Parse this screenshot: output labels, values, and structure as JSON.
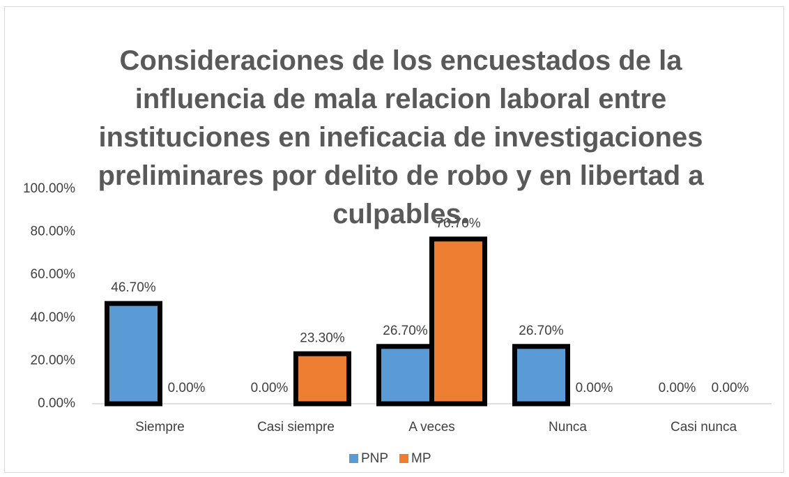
{
  "chart_data": {
    "type": "bar",
    "title": "Consideraciones de los encuestados de la influencia de mala relacion laboral entre instituciones en ineficacia de investigaciones preliminares por delito de robo y en libertad a culpables.",
    "categories": [
      "Siempre",
      "Casi siempre",
      "A veces",
      "Nunca",
      "Casi nunca"
    ],
    "series": [
      {
        "name": "PNP",
        "color": "#5b9bd5",
        "values": [
          46.7,
          0,
          26.7,
          26.7,
          0
        ],
        "value_labels": [
          "46.70%",
          "0.00%",
          "26.70%",
          "26.70%",
          "0.00%"
        ]
      },
      {
        "name": "MP",
        "color": "#ed7d31",
        "values": [
          0,
          23.3,
          76.7,
          0,
          0
        ],
        "value_labels": [
          "0.00%",
          "23.30%",
          "76.70%",
          "0.00%",
          "0.00%"
        ]
      }
    ],
    "ylim": [
      0,
      100
    ],
    "yticks": [
      {
        "value": 0,
        "label": "0.00%"
      },
      {
        "value": 20,
        "label": "20.00%"
      },
      {
        "value": 40,
        "label": "40.00%"
      },
      {
        "value": 60,
        "label": "60.00%"
      },
      {
        "value": 80,
        "label": "80.00%"
      },
      {
        "value": 100,
        "label": "100.00%"
      }
    ],
    "grid": false,
    "legend": "bottom"
  }
}
